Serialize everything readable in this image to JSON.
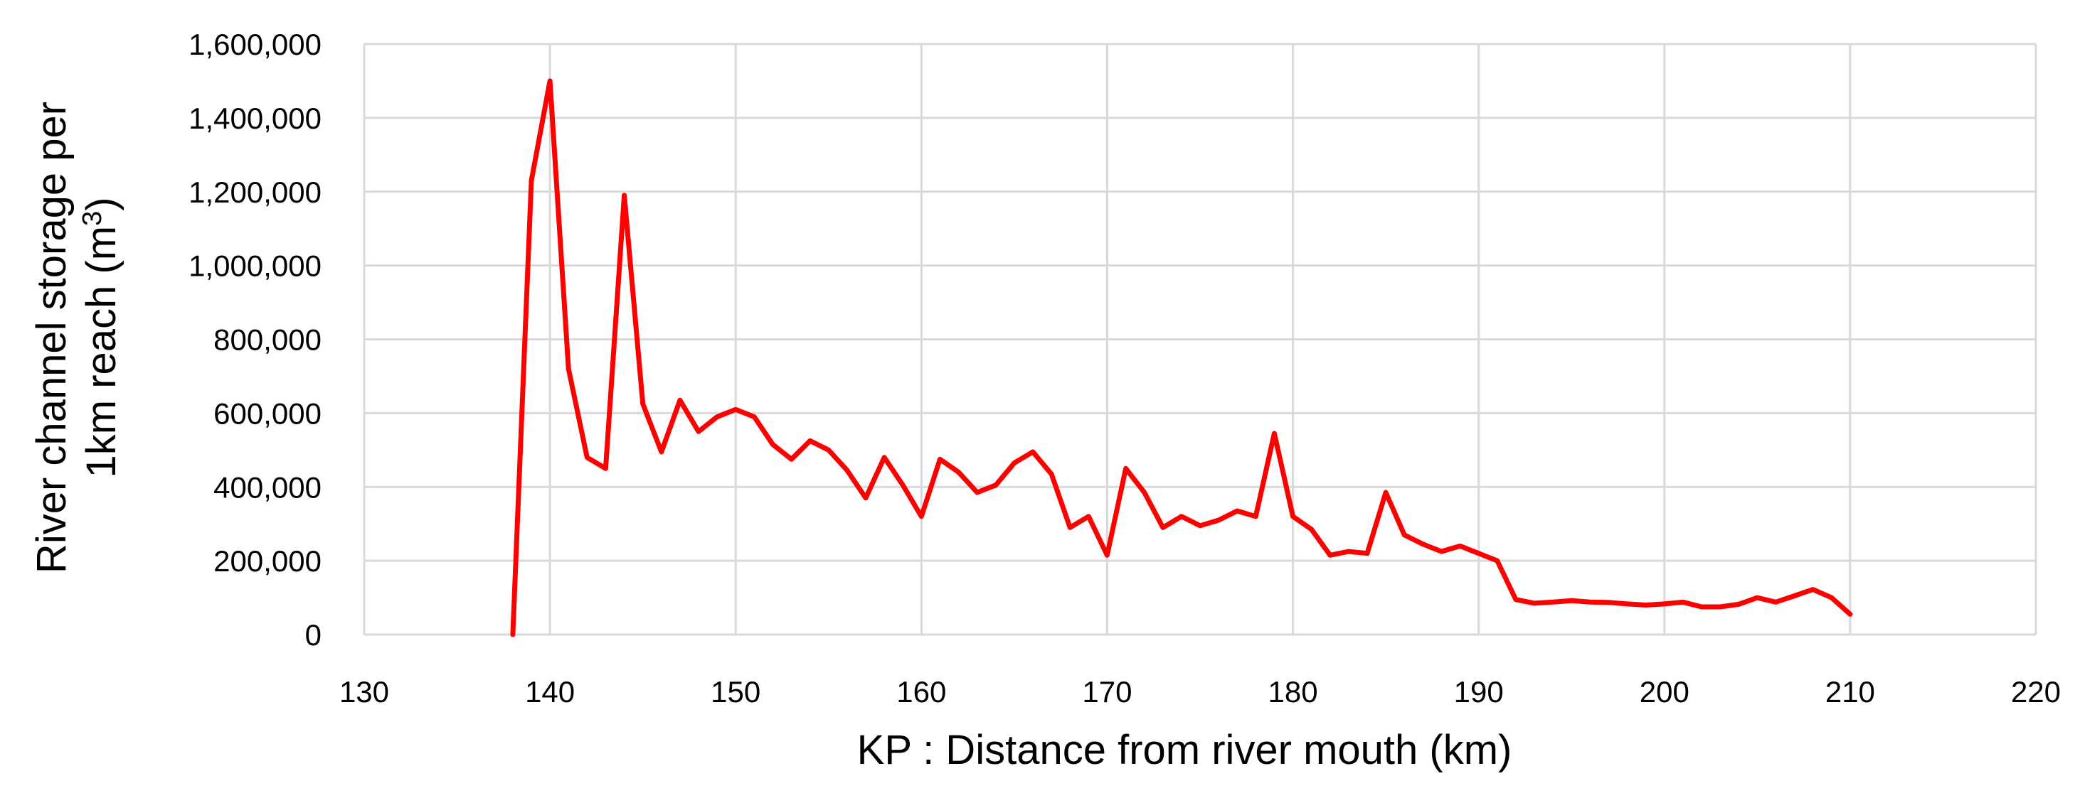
{
  "chart_data": {
    "type": "line",
    "title": "",
    "xlabel": "KP : Distance from river mouth (km)",
    "ylabel_line1": "River channel storage per",
    "ylabel_line2_prefix": "1km reach (m",
    "ylabel_line2_sup": "3",
    "ylabel_line2_suffix": ")",
    "xlim": [
      130,
      220
    ],
    "ylim": [
      0,
      1600000
    ],
    "x_ticks": [
      130,
      140,
      150,
      160,
      170,
      180,
      190,
      200,
      210,
      220
    ],
    "x_tick_labels": [
      "130",
      "140",
      "150",
      "160",
      "170",
      "180",
      "190",
      "200",
      "210",
      "220"
    ],
    "y_ticks": [
      0,
      200000,
      400000,
      600000,
      800000,
      1000000,
      1200000,
      1400000,
      1600000
    ],
    "y_tick_labels": [
      "0",
      "200,000",
      "400,000",
      "600,000",
      "800,000",
      "1,000,000",
      "1,200,000",
      "1,400,000",
      "1,600,000"
    ],
    "grid": true,
    "legend": "none",
    "series": [
      {
        "color": "#ff0000",
        "x": [
          138,
          139,
          140,
          141,
          142,
          143,
          144,
          145,
          146,
          147,
          148,
          149,
          150,
          151,
          152,
          153,
          154,
          155,
          156,
          157,
          158,
          159,
          160,
          161,
          162,
          163,
          164,
          165,
          166,
          167,
          168,
          169,
          170,
          171,
          172,
          173,
          174,
          175,
          176,
          177,
          178,
          179,
          180,
          181,
          182,
          183,
          184,
          185,
          186,
          187,
          188,
          189,
          190,
          191,
          192,
          193,
          194,
          195,
          196,
          197,
          198,
          199,
          200,
          201,
          202,
          203,
          204,
          205,
          206,
          207,
          208,
          209,
          210
        ],
        "y": [
          0,
          1230000,
          1500000,
          720000,
          480000,
          450000,
          1190000,
          625000,
          495000,
          635000,
          550000,
          590000,
          610000,
          590000,
          515000,
          475000,
          525000,
          500000,
          445000,
          370000,
          480000,
          405000,
          320000,
          475000,
          440000,
          385000,
          405000,
          465000,
          495000,
          435000,
          290000,
          320000,
          215000,
          450000,
          385000,
          290000,
          320000,
          295000,
          310000,
          335000,
          320000,
          545000,
          320000,
          285000,
          215000,
          225000,
          220000,
          385000,
          270000,
          245000,
          225000,
          240000,
          220000,
          200000,
          95000,
          85000,
          88000,
          92000,
          88000,
          87000,
          83000,
          80000,
          83000,
          88000,
          75000,
          75000,
          82000,
          100000,
          88000,
          105000,
          122000,
          100000,
          55000
        ]
      }
    ]
  }
}
